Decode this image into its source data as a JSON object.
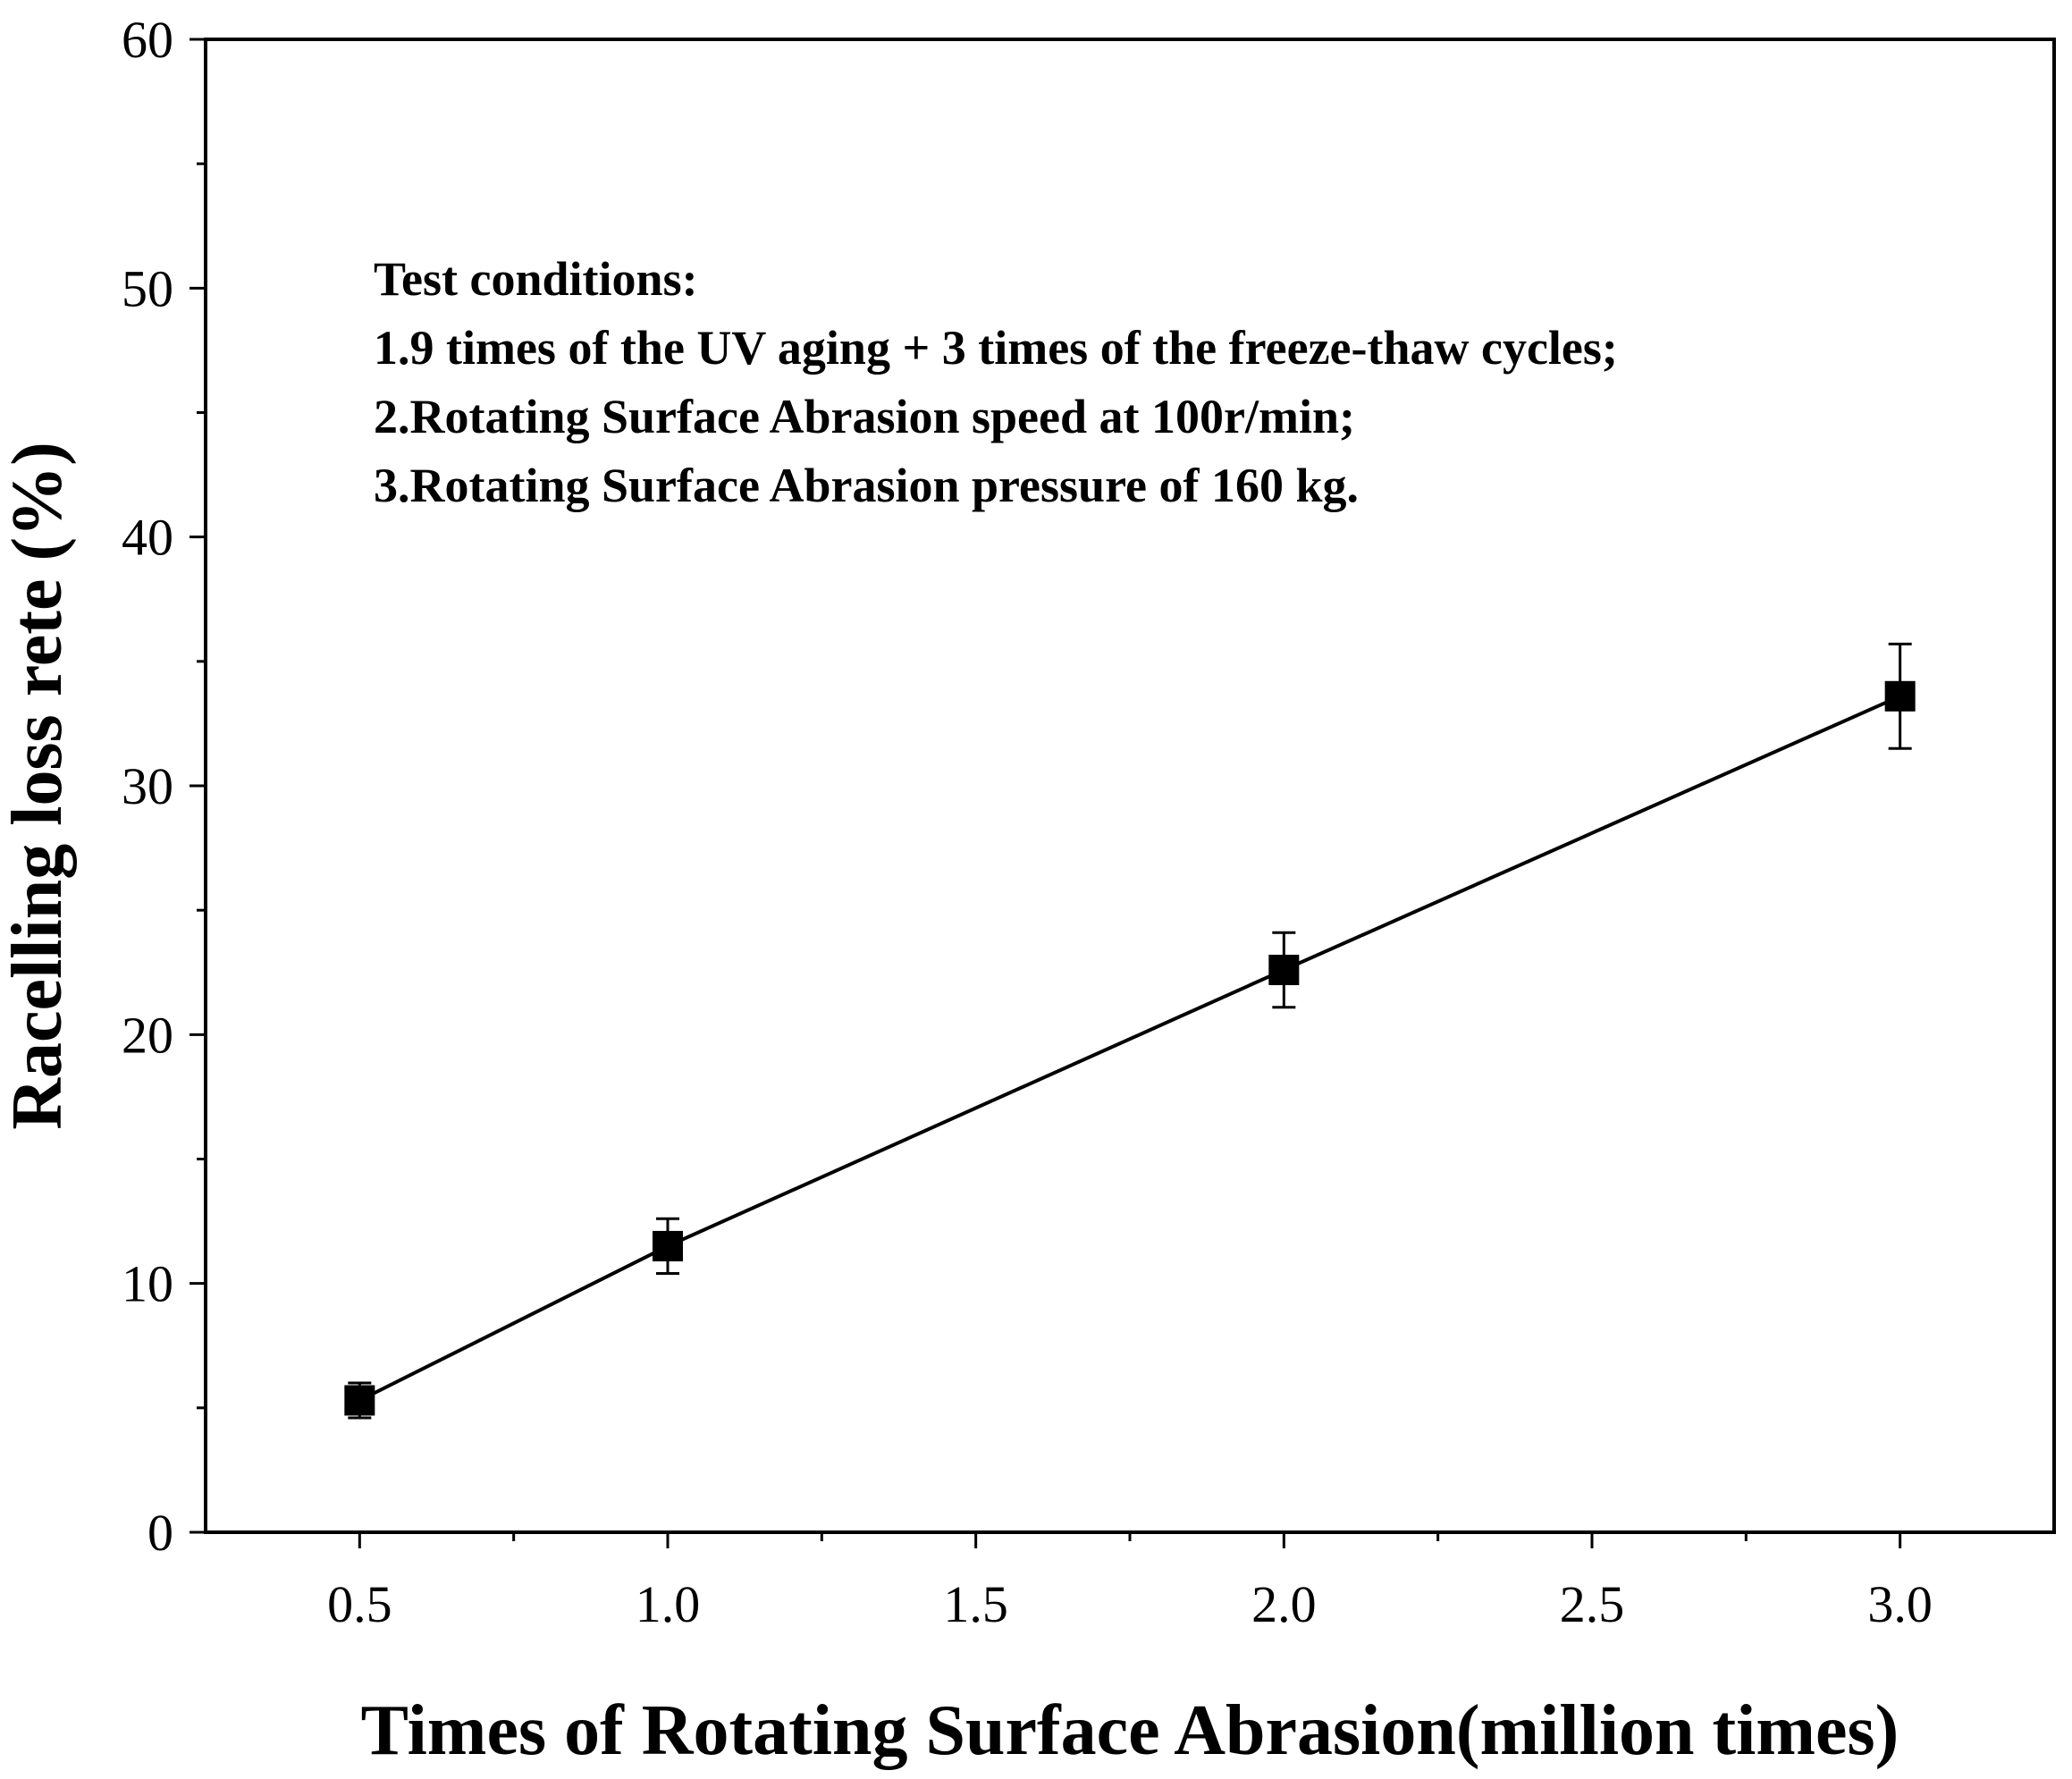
{
  "chart_data": {
    "type": "line",
    "title": "",
    "xlabel": "Times of Rotating Surface Abrasion(million times)",
    "ylabel": "Racelling loss rete (%)",
    "xlim": [
      0.25,
      3.25
    ],
    "ylim": [
      0,
      60
    ],
    "x_ticks": [
      0.5,
      1.0,
      1.5,
      2.0,
      2.5,
      3.0
    ],
    "x_tick_labels": [
      "0.5",
      "1.0",
      "1.5",
      "2.0",
      "2.5",
      "3.0"
    ],
    "y_ticks": [
      0,
      10,
      20,
      30,
      40,
      50,
      60
    ],
    "y_tick_labels": [
      "0",
      "10",
      "20",
      "30",
      "40",
      "50",
      "60"
    ],
    "grid": false,
    "series": [
      {
        "name": "Racelling loss rate",
        "marker": "square",
        "color": "#000000",
        "x": [
          0.5,
          1.0,
          2.0,
          3.0
        ],
        "y": [
          5.3,
          11.5,
          22.6,
          33.6
        ],
        "error": [
          0.7,
          1.1,
          1.5,
          2.1
        ]
      }
    ],
    "annotations": [
      "Test conditions:",
      "1.9 times of the UV aging + 3 times of the freeze-thaw cycles;",
      "2.Rotating Surface Abrasion speed at 100r/min;",
      "3.Rotating Surface Abrasion pressure of 160 kg."
    ]
  }
}
